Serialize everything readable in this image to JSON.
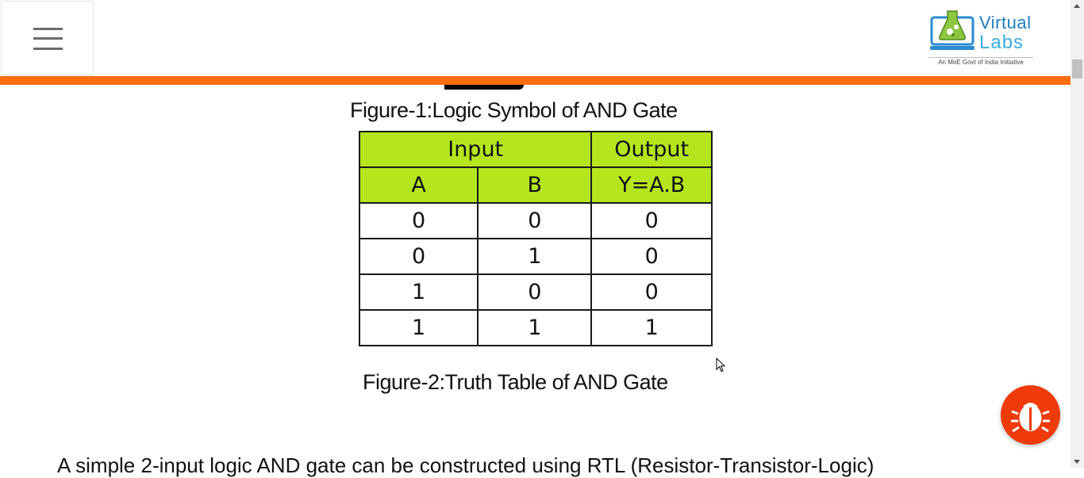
{
  "header": {
    "menu_icon": "hamburger-icon",
    "logo": {
      "word1": "Virtual",
      "word2": "Labs",
      "tagline": "An MoE Govt of India Initiative"
    },
    "accent_color": "#ff6d0d"
  },
  "content": {
    "figure1_caption": "Figure-1:Logic Symbol of AND Gate",
    "figure2_caption": "Figure-2:Truth Table of AND Gate",
    "paragraph_partial": "A simple 2-input logic AND gate can be constructed using RTL (Resistor-Transistor-Logic)"
  },
  "truth_table": {
    "group_headers": {
      "input": "Input",
      "output": "Output"
    },
    "col_headers": [
      "A",
      "B",
      "Y=A.B"
    ],
    "rows": [
      [
        "0",
        "0",
        "0"
      ],
      [
        "0",
        "1",
        "0"
      ],
      [
        "1",
        "0",
        "0"
      ],
      [
        "1",
        "1",
        "1"
      ]
    ],
    "header_color": "#b5e61d"
  },
  "floating": {
    "bug_icon": "bug-report-icon",
    "color": "#ef3a0a"
  }
}
